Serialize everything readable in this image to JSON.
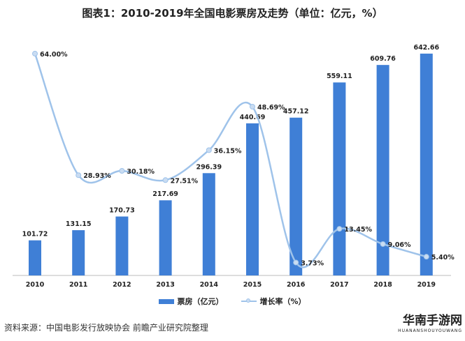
{
  "chart_data": {
    "type": "bar+line",
    "title": "图表1：2010-2019年全国电影票房及走势（单位：亿元，%）",
    "categories": [
      "2010",
      "2011",
      "2012",
      "2013",
      "2014",
      "2015",
      "2016",
      "2017",
      "2018",
      "2019"
    ],
    "series": [
      {
        "name": "票房（亿元）",
        "type": "bar",
        "color": "#3f7fd6",
        "values": [
          101.72,
          131.15,
          170.73,
          217.69,
          296.39,
          440.69,
          457.12,
          559.11,
          609.76,
          642.66
        ],
        "labels": [
          "101.72",
          "131.15",
          "170.73",
          "217.69",
          "296.39",
          "440.69",
          "457.12",
          "559.11",
          "609.76",
          "642.66"
        ]
      },
      {
        "name": "增长率（%）",
        "type": "line",
        "color": "#9fc3ea",
        "values": [
          64.0,
          28.93,
          30.18,
          27.51,
          36.15,
          48.69,
          3.73,
          13.45,
          9.06,
          5.4
        ],
        "labels": [
          "64.00%",
          "28.93%",
          "30.18%",
          "27.51%",
          "36.15%",
          "48.69%",
          "3.73%",
          "13.45%",
          "9.06%",
          "5.40%"
        ]
      }
    ],
    "grid": false,
    "legend": "bottom-center"
  },
  "source": "资料来源：中国电影发行放映协会 前瞻产业研究院整理",
  "logo": {
    "name": "华南手游网",
    "sub": "HUANANSHOUYOUWANG"
  }
}
